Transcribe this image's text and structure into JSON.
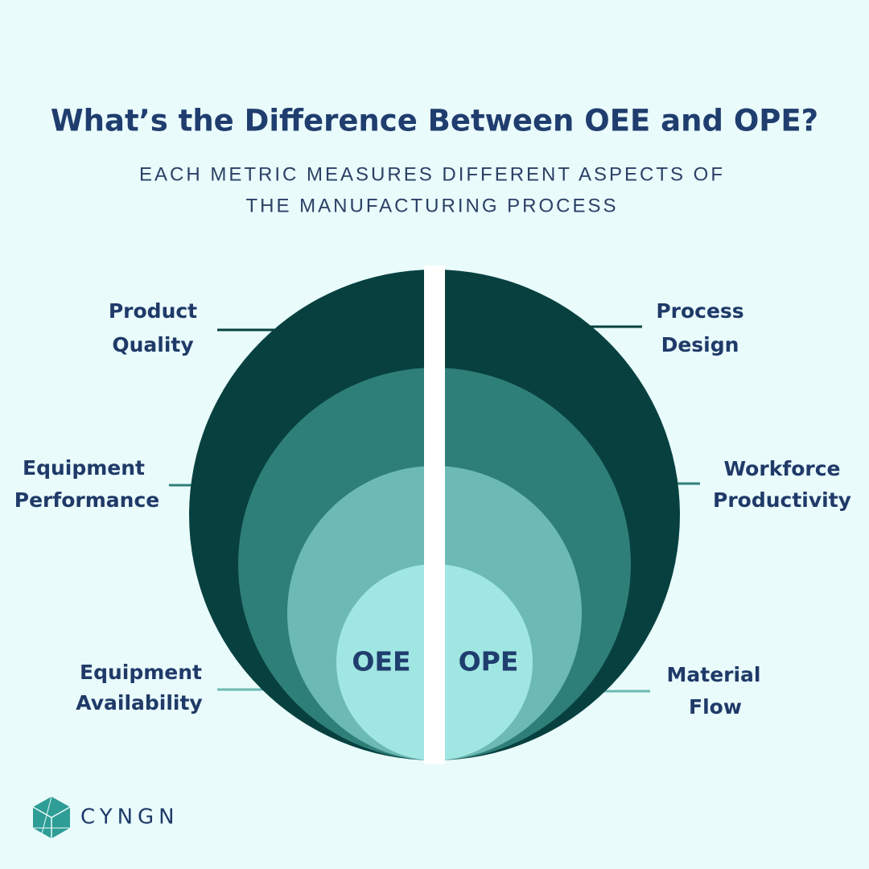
{
  "header": {
    "title": "What’s the Difference Between OEE and OPE?",
    "subtitle": [
      "EACH METRIC MEASURES DIFFERENT ASPECTS OF",
      "THE MANUFACTURING PROCESS"
    ]
  },
  "oee": {
    "label": "OEE",
    "components": [
      {
        "lines": [
          "Product",
          "Quality"
        ]
      },
      {
        "lines": [
          "Equipment",
          "Performance"
        ]
      },
      {
        "lines": [
          "Equipment",
          "Availability"
        ]
      }
    ]
  },
  "ope": {
    "label": "OPE",
    "components": [
      {
        "lines": [
          "Process",
          "Design"
        ]
      },
      {
        "lines": [
          "Workforce",
          "Productivity"
        ]
      },
      {
        "lines": [
          "Material",
          "Flow"
        ]
      }
    ]
  },
  "logo": {
    "text": "CYNGN"
  }
}
